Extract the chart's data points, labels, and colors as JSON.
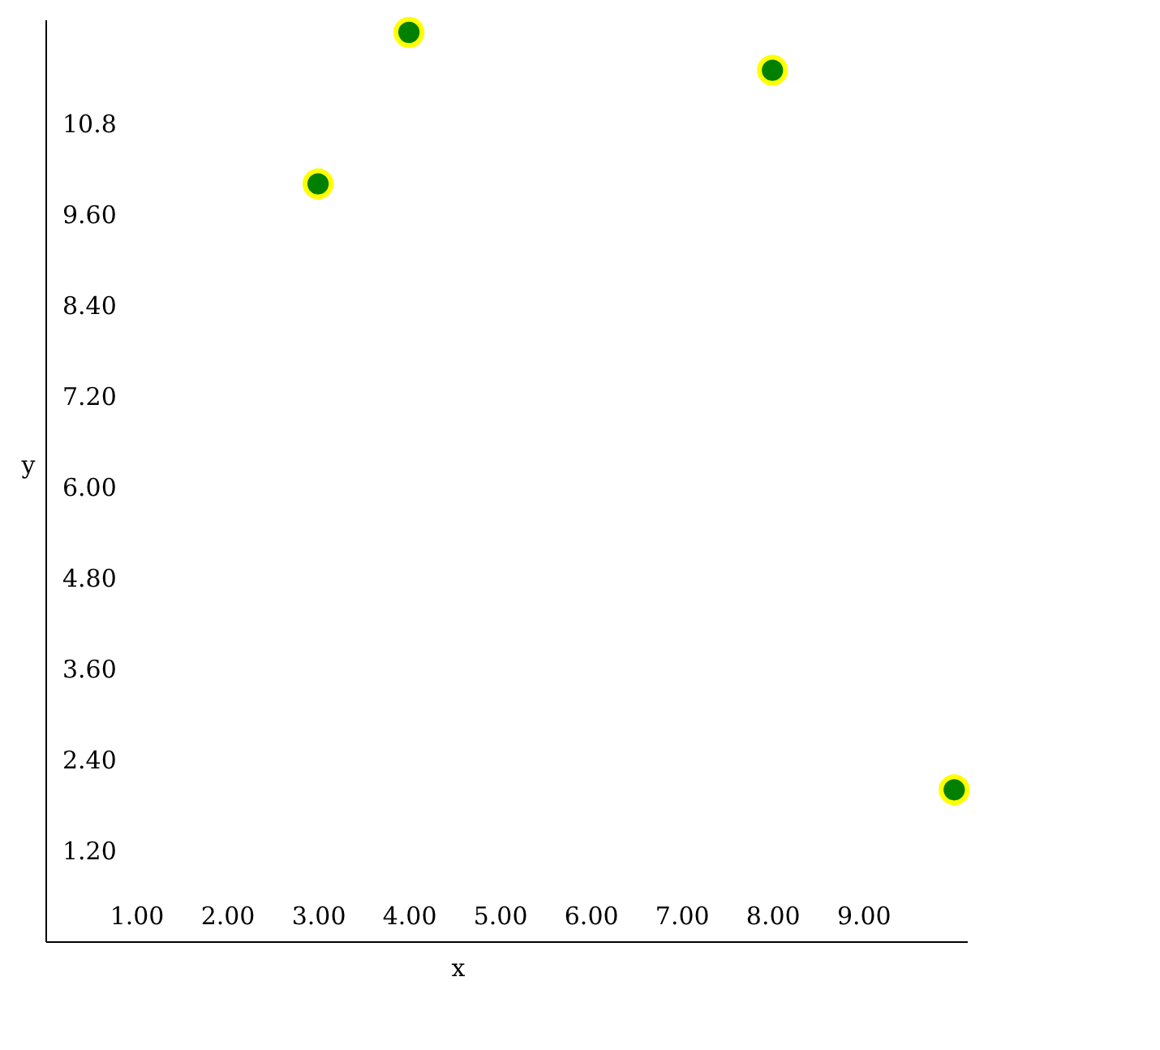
{
  "chart_data": {
    "type": "scatter",
    "xlabel": "x",
    "ylabel": "y",
    "x": [
      3.0,
      4.0,
      8.0,
      10.0
    ],
    "series": [
      {
        "color": "#008000",
        "values": [
          10.0,
          12.0,
          11.5,
          2.0
        ]
      }
    ],
    "marker": "circle",
    "grid": false,
    "xlim": [
      0,
      10.14
    ],
    "ylim": [
      0,
      12.17
    ],
    "xticks": [
      {
        "value": 1,
        "label": "1.00"
      },
      {
        "value": 2,
        "label": "2.00"
      },
      {
        "value": 3,
        "label": "3.00"
      },
      {
        "value": 4,
        "label": "4.00"
      },
      {
        "value": 5,
        "label": "5.00"
      },
      {
        "value": 6,
        "label": "6.00"
      },
      {
        "value": 7,
        "label": "7.00"
      },
      {
        "value": 8,
        "label": "8.00"
      },
      {
        "value": 9,
        "label": "9.00"
      }
    ],
    "yticks": [
      {
        "value": 1.2,
        "label": "1.20"
      },
      {
        "value": 2.4,
        "label": "2.40"
      },
      {
        "value": 3.6,
        "label": "3.60"
      },
      {
        "value": 4.8,
        "label": "4.80"
      },
      {
        "value": 6,
        "label": "6.00"
      },
      {
        "value": 7.2,
        "label": "7.20"
      },
      {
        "value": 8.4,
        "label": "8.40"
      },
      {
        "value": 9.6,
        "label": "9.60"
      },
      {
        "value": 10.8,
        "label": "10.8"
      }
    ]
  }
}
